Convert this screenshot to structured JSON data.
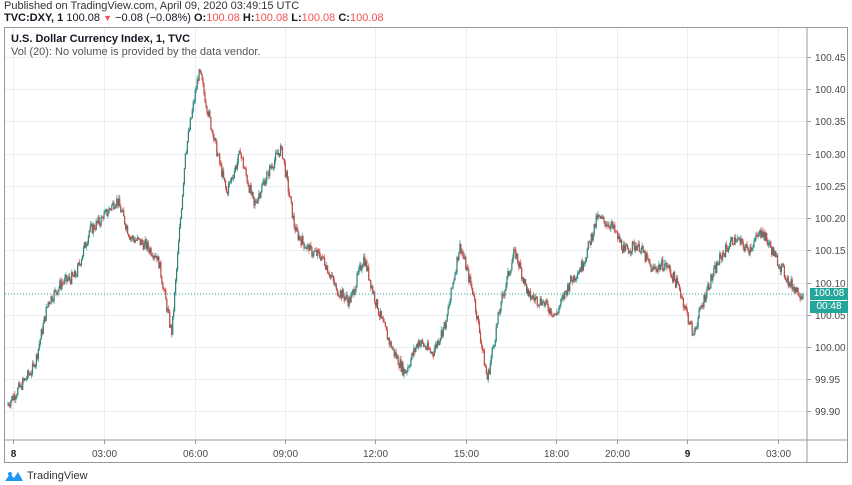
{
  "header": {
    "published": "Published on TradingView.com, April 09, 2020 03:49:15 UTC",
    "symbol": "TVC:DXY, 1",
    "last": "100.08",
    "change_icon": "triangle-down-icon",
    "change": "−0.08 (−0.08%)",
    "open_label": "O:",
    "open": "100.08",
    "high_label": "H:",
    "high": "100.08",
    "low_label": "L:",
    "low": "100.08",
    "close_label": "C:",
    "close": "100.08"
  },
  "legend": {
    "title": "U.S. Dollar Currency Index, 1, TVC",
    "volume_note": "Vol (20): No volume is provided by the data vendor."
  },
  "price_badge": {
    "price": "100.08",
    "countdown": "00:48",
    "color": "#26a69a"
  },
  "footer": {
    "brand": "TradingView",
    "logo_icon": "tradingview-logo-icon"
  },
  "colors": {
    "up": "#26a69a",
    "down": "#ef5350",
    "grid": "#e9eef4",
    "axis": "#9598a1"
  },
  "chart_data": {
    "type": "line",
    "title": "U.S. Dollar Currency Index, 1, TVC",
    "xlabel": "",
    "ylabel": "",
    "ylim": [
      99.87,
      100.49
    ],
    "grid": true,
    "legend_position": "top-left",
    "y_ticks": [
      "100.45",
      "100.40",
      "100.35",
      "100.30",
      "100.25",
      "100.20",
      "100.15",
      "100.10",
      "100.05",
      "100.00",
      "99.95",
      "99.90"
    ],
    "x_ticks": [
      "8",
      "03:00",
      "06:00",
      "09:00",
      "12:00",
      "15:00",
      "18:00",
      "20:00",
      "9",
      "03:00"
    ],
    "current_price": 100.08,
    "x": [
      "8 00:00",
      "8 00:30",
      "8 01:00",
      "8 01:30",
      "8 02:00",
      "8 02:30",
      "8 03:00",
      "8 03:30",
      "8 04:00",
      "8 04:30",
      "8 05:00",
      "8 05:30",
      "8 05:55",
      "8 06:05",
      "8 06:20",
      "8 06:40",
      "8 07:00",
      "8 07:30",
      "8 08:00",
      "8 08:30",
      "8 09:00",
      "8 09:30",
      "8 10:00",
      "8 10:30",
      "8 11:00",
      "8 11:30",
      "8 12:00",
      "8 12:30",
      "8 13:00",
      "8 13:30",
      "8 14:00",
      "8 14:30",
      "8 14:55",
      "8 15:05",
      "8 15:30",
      "8 16:00",
      "8 16:30",
      "8 17:00",
      "8 17:30",
      "8 18:00",
      "8 18:30",
      "8 19:00",
      "8 19:30",
      "8 20:00",
      "8 20:30",
      "8 21:00",
      "8 21:30",
      "8 22:00",
      "8 22:30",
      "8 23:00",
      "8 23:30",
      "9 00:00",
      "9 00:30",
      "9 01:00",
      "9 01:30",
      "9 02:00",
      "9 02:30",
      "9 03:00",
      "9 03:30"
    ],
    "series": [
      {
        "name": "DXY",
        "values": [
          99.91,
          99.94,
          99.97,
          100.07,
          100.1,
          100.11,
          100.18,
          100.2,
          100.23,
          100.17,
          100.16,
          100.14,
          100.02,
          100.3,
          100.43,
          100.33,
          100.24,
          100.3,
          100.22,
          100.27,
          100.31,
          100.18,
          100.15,
          100.14,
          100.09,
          100.07,
          100.14,
          100.06,
          100.0,
          99.96,
          100.01,
          99.99,
          100.04,
          100.16,
          100.08,
          99.95,
          100.07,
          100.15,
          100.08,
          100.07,
          100.05,
          100.1,
          100.13,
          100.2,
          100.19,
          100.15,
          100.16,
          100.12,
          100.13,
          100.09,
          100.02,
          100.09,
          100.14,
          100.17,
          100.15,
          100.18,
          100.14,
          100.1,
          100.08
        ]
      }
    ]
  }
}
